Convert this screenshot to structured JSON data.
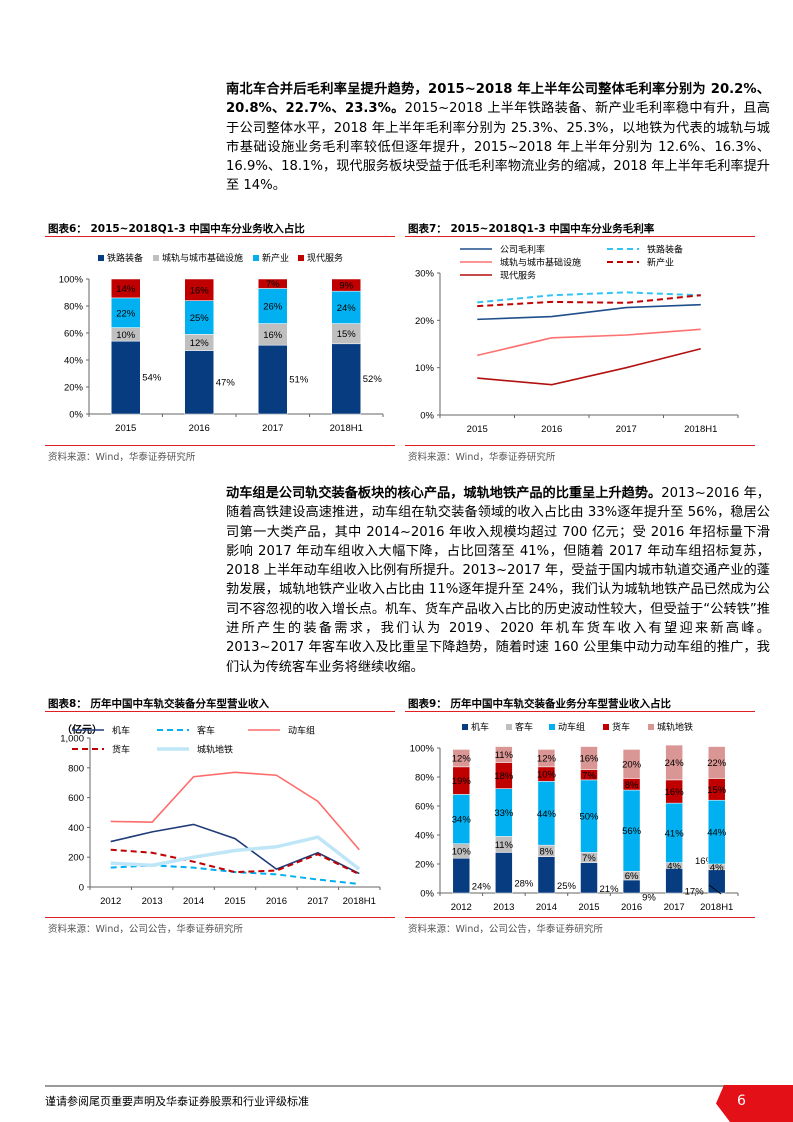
{
  "para1": {
    "bold": "南北车合并后毛利率呈提升趋势，2015~2018 年上半年公司整体毛利率分别为 20.2%、20.8%、22.7%、23.3%。",
    "text": "2015~2018 上半年铁路装备、新产业毛利率稳中有升，且高于公司整体水平，2018 年上半年毛利率分别为 25.3%、25.3%，以地铁为代表的城轨与城市基础设施业务毛利率较低但逐年提升，2015~2018 年上半年分别为 12.6%、16.3%、16.9%、18.1%，现代服务板块受益于低毛利率物流业务的缩减，2018 年上半年毛利率提升至 14%。"
  },
  "para2": {
    "bold": "动车组是公司轨交装备板块的核心产品，城轨地铁产品的比重呈上升趋势。",
    "text": "2013~2016 年，随着高铁建设高速推进，动车组在轨交装备领域的收入占比由 33%逐年提升至 56%，稳居公司第一大类产品，其中 2014~2016 年收入规模均超过 700 亿元；受 2016 年招标量下滑影响 2017 年动车组收入大幅下降，占比回落至 41%，但随着 2017 年动车组招标复苏，2018 上半年动车组收入比例有所提升。2013~2017 年，受益于国内城市轨道交通产业的蓬勃发展，城轨地铁产业收入占比由 11%逐年提升至 24%，我们认为城轨地铁产品已然成为公司不容忽视的收入增长点。机车、货车产品收入占比的历史波动性较大，但受益于“公转铁”推进所产生的装备需求，我们认为 2019、2020 年机车货车收入有望迎来新高峰。2013~2017 年客车收入及比重呈下降趋势，随着时速 160 公里集中动力动车组的推广，我们认为传统客车业务将继续收缩。"
  },
  "footer": {
    "disclaimer": "谨请参阅尾页重要声明及华泰证券股票和行业评级标准",
    "page": "6"
  },
  "chart_data": [
    {
      "id": "fig6",
      "type": "bar",
      "stacked": true,
      "title": "图表6：  2015~2018Q1-3 中国中车分业务收入占比",
      "source": "资料来源：Wind，华泰证券研究所",
      "categories": [
        "2015",
        "2016",
        "2017",
        "2018H1"
      ],
      "yticks": [
        "0%",
        "20%",
        "40%",
        "60%",
        "80%",
        "100%"
      ],
      "ylim": [
        0,
        100
      ],
      "legend": "top",
      "series": [
        {
          "name": "铁路装备",
          "color": "#073c80",
          "values": [
            54,
            47,
            51,
            52
          ]
        },
        {
          "name": "城轨与城市基础设施",
          "color": "#bfbfbf",
          "values": [
            10,
            12,
            16,
            15
          ]
        },
        {
          "name": "新产业",
          "color": "#00b0f0",
          "values": [
            22,
            25,
            26,
            24
          ]
        },
        {
          "name": "现代服务",
          "color": "#c00000",
          "values": [
            14,
            16,
            7,
            9
          ]
        }
      ],
      "labels": [
        [
          "54%",
          "47%",
          "51%",
          "52%"
        ],
        [
          "10%",
          "12%",
          "16%",
          "15%"
        ],
        [
          "22%",
          "25%",
          "26%",
          "24%"
        ],
        [
          "14%",
          "16%",
          "7%",
          "9%"
        ]
      ]
    },
    {
      "id": "fig7",
      "type": "line",
      "title": "图表7：  2015~2018Q1-3 中国中车分业务毛利率",
      "source": "资料来源：Wind，华泰证券研究所",
      "categories": [
        "2015",
        "2016",
        "2017",
        "2018H1"
      ],
      "yticks": [
        "0%",
        "10%",
        "20%",
        "30%"
      ],
      "ylim": [
        0,
        30
      ],
      "legend": "top",
      "series": [
        {
          "name": "公司毛利率",
          "color": "#1f4e8c",
          "dash": false,
          "values": [
            20.2,
            20.8,
            22.7,
            23.3
          ]
        },
        {
          "name": "铁路装备",
          "color": "#33c4f5",
          "dash": true,
          "values": [
            23.8,
            25.3,
            25.9,
            25.3
          ]
        },
        {
          "name": "城轨与城市基础设施",
          "color": "#ff7070",
          "dash": false,
          "values": [
            12.6,
            16.3,
            16.9,
            18.1
          ]
        },
        {
          "name": "新产业",
          "color": "#c00000",
          "dash": true,
          "values": [
            23.0,
            23.9,
            23.7,
            25.3
          ]
        },
        {
          "name": "现代服务",
          "color": "#b40f0f",
          "dash": false,
          "values": [
            7.8,
            6.4,
            10.0,
            14.0
          ]
        }
      ]
    },
    {
      "id": "fig8",
      "type": "line",
      "title": "图表8：  历年中国中车轨交装备分车型营业收入",
      "source": "资料来源：Wind，公司公告，华泰证券研究所",
      "unit": "（亿元）",
      "categories": [
        "2012",
        "2013",
        "2014",
        "2015",
        "2016",
        "2017",
        "2018H1"
      ],
      "yticks": [
        "0",
        "200",
        "400",
        "600",
        "800",
        "1,000"
      ],
      "ylim": [
        0,
        1000
      ],
      "legend": "top",
      "series": [
        {
          "name": "机车",
          "color": "#1f3c78",
          "dash": false,
          "values": [
            305,
            370,
            420,
            325,
            120,
            230,
            90
          ]
        },
        {
          "name": "客车",
          "color": "#00b0f0",
          "dash": true,
          "values": [
            130,
            145,
            130,
            100,
            85,
            50,
            20
          ]
        },
        {
          "name": "动车组",
          "color": "#ff6b6b",
          "dash": false,
          "values": [
            440,
            435,
            740,
            770,
            750,
            575,
            250
          ]
        },
        {
          "name": "货车",
          "color": "#c00000",
          "dash": true,
          "values": [
            250,
            230,
            170,
            100,
            110,
            220,
            85
          ]
        },
        {
          "name": "城轨地铁",
          "color": "#bfe6f7",
          "dash": false,
          "values": [
            160,
            145,
            200,
            245,
            270,
            335,
            120
          ]
        }
      ]
    },
    {
      "id": "fig9",
      "type": "bar",
      "stacked": true,
      "title": "图表9：  历年中国中车轨交装备业务分车型营业收入占比",
      "source": "资料来源：Wind，公司公告，华泰证券研究所",
      "categories": [
        "2012",
        "2013",
        "2014",
        "2015",
        "2016",
        "2017",
        "2018H1"
      ],
      "yticks": [
        "0%",
        "20%",
        "40%",
        "60%",
        "80%",
        "100%"
      ],
      "ylim": [
        0,
        100
      ],
      "legend": "top",
      "series": [
        {
          "name": "机车",
          "color": "#073c80",
          "values": [
            24,
            28,
            25,
            21,
            9,
            17,
            16
          ]
        },
        {
          "name": "客车",
          "color": "#bfbfbf",
          "values": [
            10,
            11,
            8,
            7,
            6,
            4,
            4
          ]
        },
        {
          "name": "动车组",
          "color": "#00b0f0",
          "values": [
            34,
            33,
            44,
            50,
            56,
            41,
            44
          ]
        },
        {
          "name": "货车",
          "color": "#c00000",
          "values": [
            19,
            18,
            10,
            7,
            8,
            16,
            15
          ]
        },
        {
          "name": "城轨地铁",
          "color": "#d99694",
          "values": [
            12,
            11,
            12,
            16,
            20,
            24,
            22
          ]
        }
      ],
      "labels": [
        [
          "24%",
          "28%",
          "25%",
          "21%",
          "9%",
          "17%",
          "16%"
        ],
        [
          "10%",
          "11%",
          "8%",
          "7%",
          "6%",
          "4%",
          "4%"
        ],
        [
          "34%",
          "33%",
          "44%",
          "50%",
          "56%",
          "41%",
          "44%"
        ],
        [
          "19%",
          "18%",
          "10%",
          "7%",
          "8%",
          "16%",
          "15%"
        ],
        [
          "12%",
          "11%",
          "12%",
          "16%",
          "20%",
          "24%",
          "22%"
        ]
      ]
    }
  ]
}
